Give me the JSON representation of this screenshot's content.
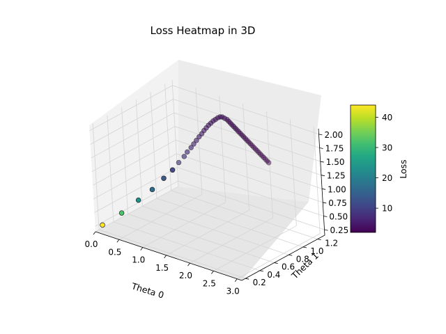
{
  "chart_data": {
    "type": "scatter3d",
    "title": "Loss Heatmap in 3D",
    "xlabel": "Theta 0",
    "ylabel": "Theta 1",
    "zlabel": "",
    "xlim": [
      0.0,
      3.1
    ],
    "ylim": [
      0.15,
      1.3
    ],
    "zlim": [
      0.15,
      2.1
    ],
    "xticks": [
      "0.0",
      "0.5",
      "1.0",
      "1.5",
      "2.0",
      "2.5",
      "3.0"
    ],
    "yticks": [
      "0.2",
      "0.4",
      "0.6",
      "0.8",
      "1.0",
      "1.2"
    ],
    "zticks": [
      "0.25",
      "0.50",
      "0.75",
      "1.00",
      "1.25",
      "1.50",
      "1.75",
      "2.00"
    ],
    "colormap": "viridis",
    "colorbar": {
      "label": "Loss",
      "range": [
        2,
        44
      ],
      "ticks": [
        "10",
        "20",
        "30",
        "40"
      ]
    },
    "grid": true,
    "series": [
      {
        "x": [
          0.0,
          0.3,
          0.55,
          0.75,
          0.9,
          1.02,
          1.1,
          1.16,
          1.2,
          1.24,
          1.27,
          1.3,
          1.33,
          1.36,
          1.38,
          1.4,
          1.42,
          1.44,
          1.46,
          1.48,
          1.5,
          1.52,
          1.55,
          1.6,
          1.65,
          1.7,
          1.75,
          1.8,
          1.85,
          1.9,
          1.95,
          2.0,
          2.05,
          2.1,
          2.15,
          2.2,
          2.25,
          2.3,
          2.35,
          2.4,
          2.45,
          2.5,
          2.55,
          2.6,
          2.65,
          2.7,
          2.75,
          2.8,
          2.85,
          2.9
        ],
        "y": [
          0.25,
          0.33,
          0.41,
          0.48,
          0.55,
          0.6,
          0.64,
          0.68,
          0.7,
          0.73,
          0.75,
          0.77,
          0.79,
          0.81,
          0.83,
          0.85,
          0.87,
          0.89,
          0.91,
          0.93,
          0.95,
          0.97,
          0.98,
          0.98,
          0.98,
          0.97,
          0.96,
          0.95,
          0.94,
          0.93,
          0.92,
          0.91,
          0.9,
          0.89,
          0.88,
          0.87,
          0.86,
          0.85,
          0.84,
          0.83,
          0.82,
          0.81,
          0.8,
          0.79,
          0.78,
          0.77,
          0.76,
          0.75,
          0.74,
          0.73
        ],
        "z": [
          0.2,
          0.45,
          0.7,
          0.9,
          1.1,
          1.25,
          1.38,
          1.48,
          1.56,
          1.63,
          1.69,
          1.75,
          1.81,
          1.86,
          1.91,
          1.95,
          1.99,
          2.02,
          2.05,
          2.07,
          2.09,
          2.1,
          2.1,
          2.09,
          2.08,
          2.07,
          2.06,
          2.05,
          2.04,
          2.03,
          2.02,
          2.01,
          2.0,
          1.99,
          1.98,
          1.97,
          1.96,
          1.95,
          1.94,
          1.93,
          1.92,
          1.91,
          1.9,
          1.89,
          1.88,
          1.87,
          1.86,
          1.85,
          1.84,
          1.83
        ],
        "loss": [
          44,
          32,
          23,
          17,
          13,
          10.5,
          9,
          8,
          7.4,
          6.8,
          6.3,
          5.9,
          5.6,
          5.3,
          5.0,
          4.8,
          4.6,
          4.4,
          4.2,
          4.0,
          3.8,
          3.6,
          3.4,
          3.2,
          3.0,
          2.9,
          2.8,
          2.7,
          2.6,
          2.55,
          2.5,
          2.45,
          2.4,
          2.35,
          2.3,
          2.25,
          2.2,
          2.15,
          2.1,
          2.08,
          2.06,
          2.04,
          2.02,
          2.0,
          2.0,
          2.0,
          2.0,
          2.0,
          2.0,
          2.0
        ]
      }
    ]
  }
}
